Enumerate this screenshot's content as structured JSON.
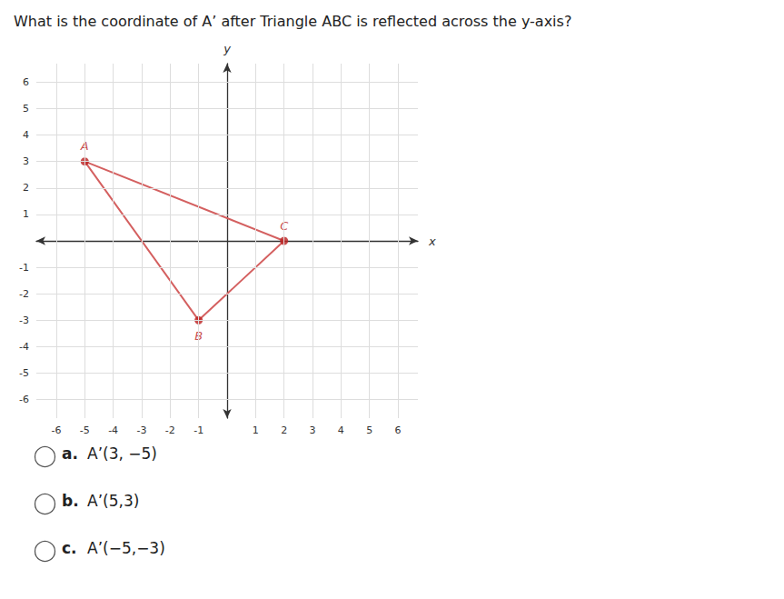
{
  "chart_data": {
    "type": "line",
    "title": "What is the coordinate of A’ after Triangle ABC is reflected across the y-axis?",
    "xlabel": "x",
    "ylabel": "y",
    "xlim": [
      -6.7,
      6.7
    ],
    "ylim": [
      -6.7,
      6.7
    ],
    "xticks": [
      -6,
      -5,
      -4,
      -3,
      -2,
      -1,
      1,
      2,
      3,
      4,
      5,
      6
    ],
    "yticks": [
      -6,
      -5,
      -4,
      -3,
      -2,
      -1,
      1,
      2,
      3,
      4,
      5,
      6
    ],
    "grid": true,
    "series": [
      {
        "type": "line",
        "color": "#d46060",
        "x": [
          -5,
          -1,
          2,
          -5
        ],
        "values": [
          3,
          -3,
          0,
          3
        ]
      },
      {
        "type": "scatter",
        "color": "#bb2222",
        "marker": "circle",
        "x": [
          -5,
          -1,
          2
        ],
        "values": [
          3,
          -3,
          0
        ],
        "labels": [
          "A",
          "B",
          "C"
        ]
      }
    ],
    "annotations": [
      {
        "label": "a.",
        "text": "A’(3, −5)"
      },
      {
        "label": "b.",
        "text": "A’(5,3)"
      },
      {
        "label": "c.",
        "text": "A’(−5,−3)"
      }
    ]
  }
}
